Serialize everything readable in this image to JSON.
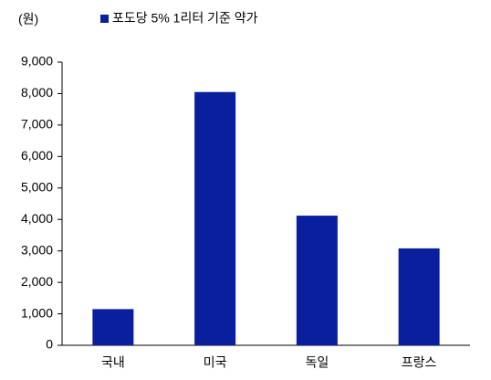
{
  "chart_data": {
    "type": "bar",
    "y_axis_label": "(원)",
    "categories": [
      "국내",
      "미국",
      "독일",
      "프랑스"
    ],
    "series": [
      {
        "name": "포도당 5% 1리터 기준 약가",
        "color": "#0a1f9e",
        "values": [
          1150,
          8050,
          4120,
          3080
        ]
      }
    ],
    "ylim": [
      0,
      9000
    ],
    "yticks": [
      0,
      {
        "value": 1000,
        "label": "1,000"
      },
      {
        "value": 2000,
        "label": "2,000"
      },
      {
        "value": 3000,
        "label": "3,000"
      },
      {
        "value": 4000,
        "label": "4,000"
      },
      {
        "value": 5000,
        "label": "5,000"
      },
      {
        "value": 6000,
        "label": "6,000"
      },
      {
        "value": 7000,
        "label": "7,000"
      },
      {
        "value": 8000,
        "label": "8,000"
      },
      {
        "value": 9000,
        "label": "9,000"
      }
    ],
    "grid": false
  }
}
